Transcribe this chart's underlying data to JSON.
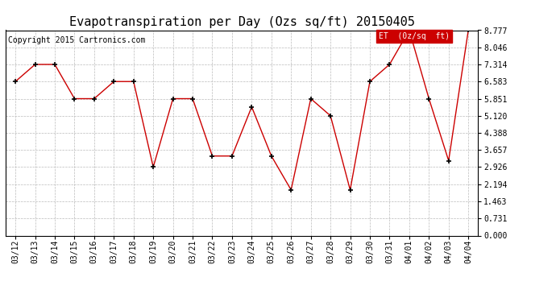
{
  "title": "Evapotranspiration per Day (Ozs sq/ft) 20150405",
  "copyright": "Copyright 2015 Cartronics.com",
  "legend_label": "ET  (0z/sq  ft)",
  "dates": [
    "03/12",
    "03/13",
    "03/14",
    "03/15",
    "03/16",
    "03/17",
    "03/18",
    "03/19",
    "03/20",
    "03/21",
    "03/22",
    "03/23",
    "03/24",
    "03/25",
    "03/26",
    "03/27",
    "03/28",
    "03/29",
    "03/30",
    "03/31",
    "04/01",
    "04/02",
    "04/03",
    "04/04"
  ],
  "values": [
    6.583,
    7.314,
    7.314,
    5.851,
    5.851,
    6.583,
    6.583,
    2.926,
    5.851,
    5.851,
    3.4,
    3.4,
    5.5,
    3.4,
    1.95,
    5.851,
    5.12,
    1.95,
    6.583,
    7.314,
    8.777,
    5.851,
    3.2,
    8.777
  ],
  "line_color": "#cc0000",
  "marker": "+",
  "marker_color": "#000000",
  "marker_size": 5,
  "bg_color": "#ffffff",
  "grid_color": "#bbbbbb",
  "yticks": [
    0.0,
    0.731,
    1.463,
    2.194,
    2.926,
    3.657,
    4.388,
    5.12,
    5.851,
    6.583,
    7.314,
    8.046,
    8.777
  ],
  "ymin": 0.0,
  "ymax": 8.777,
  "legend_bg": "#cc0000",
  "legend_text_color": "#ffffff",
  "title_fontsize": 11,
  "copyright_fontsize": 7,
  "tick_fontsize": 7,
  "fig_width": 6.9,
  "fig_height": 3.75,
  "dpi": 100
}
